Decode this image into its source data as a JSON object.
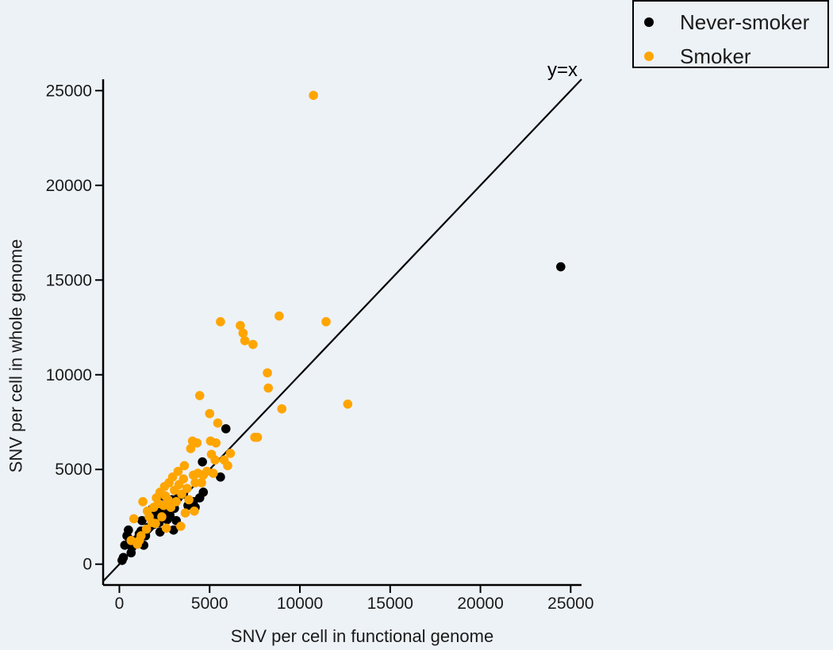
{
  "chart_data": {
    "type": "scatter",
    "xlabel": "SNV per cell in functional genome",
    "ylabel": "SNV per cell in whole genome",
    "xlim": [
      -900,
      25600
    ],
    "ylim": [
      -1100,
      25600
    ],
    "xticks": [
      0,
      5000,
      10000,
      15000,
      20000,
      25000
    ],
    "yticks": [
      0,
      5000,
      10000,
      15000,
      20000,
      25000
    ],
    "grid": false,
    "legend_position": "top-right",
    "reference_line": {
      "label": "y=x",
      "slope": 1,
      "intercept": 0
    },
    "series": [
      {
        "name": "Never-smoker",
        "color": "#000000",
        "points": [
          [
            150,
            200
          ],
          [
            220,
            350
          ],
          [
            300,
            1000
          ],
          [
            420,
            1500
          ],
          [
            500,
            1800
          ],
          [
            580,
            1300
          ],
          [
            650,
            600
          ],
          [
            700,
            900
          ],
          [
            800,
            1100
          ],
          [
            950,
            1300
          ],
          [
            1100,
            1600
          ],
          [
            1200,
            1750
          ],
          [
            1250,
            2300
          ],
          [
            1350,
            1000
          ],
          [
            1450,
            1500
          ],
          [
            1600,
            1950
          ],
          [
            1700,
            2600
          ],
          [
            1800,
            2900
          ],
          [
            1900,
            2100
          ],
          [
            2000,
            2400
          ],
          [
            2100,
            2650
          ],
          [
            2200,
            2200
          ],
          [
            2250,
            1700
          ],
          [
            2300,
            2800
          ],
          [
            2400,
            3600
          ],
          [
            2450,
            2500
          ],
          [
            2550,
            2700
          ],
          [
            2650,
            2350
          ],
          [
            2700,
            3100
          ],
          [
            2800,
            2600
          ],
          [
            2900,
            3400
          ],
          [
            3000,
            1800
          ],
          [
            3050,
            2950
          ],
          [
            3150,
            2300
          ],
          [
            3250,
            3500
          ],
          [
            3550,
            3700
          ],
          [
            3800,
            3100
          ],
          [
            4100,
            3300
          ],
          [
            4200,
            3000
          ],
          [
            4450,
            3500
          ],
          [
            4600,
            5400
          ],
          [
            4650,
            3800
          ],
          [
            5600,
            4600
          ],
          [
            5900,
            7150
          ],
          [
            24450,
            15700
          ]
        ]
      },
      {
        "name": "Smoker",
        "color": "#ffa500",
        "points": [
          [
            650,
            1250
          ],
          [
            800,
            2400
          ],
          [
            1000,
            1050
          ],
          [
            1100,
            1250
          ],
          [
            1200,
            1500
          ],
          [
            1300,
            3300
          ],
          [
            1500,
            1850
          ],
          [
            1550,
            2800
          ],
          [
            1650,
            2500
          ],
          [
            1800,
            2200
          ],
          [
            1900,
            3000
          ],
          [
            2000,
            2150
          ],
          [
            2050,
            3500
          ],
          [
            2150,
            3200
          ],
          [
            2250,
            3800
          ],
          [
            2350,
            2500
          ],
          [
            2450,
            3100
          ],
          [
            2500,
            4100
          ],
          [
            2550,
            3600
          ],
          [
            2600,
            1900
          ],
          [
            2700,
            3400
          ],
          [
            2750,
            4300
          ],
          [
            2850,
            3000
          ],
          [
            2950,
            4600
          ],
          [
            3050,
            3900
          ],
          [
            3150,
            3300
          ],
          [
            3250,
            4900
          ],
          [
            3300,
            4200
          ],
          [
            3400,
            2000
          ],
          [
            3450,
            3700
          ],
          [
            3550,
            4500
          ],
          [
            3600,
            5200
          ],
          [
            3650,
            2700
          ],
          [
            3750,
            4000
          ],
          [
            3850,
            3400
          ],
          [
            3950,
            6100
          ],
          [
            4050,
            6500
          ],
          [
            4100,
            4700
          ],
          [
            4150,
            2800
          ],
          [
            4200,
            4300
          ],
          [
            4300,
            6400
          ],
          [
            4350,
            4800
          ],
          [
            4450,
            8900
          ],
          [
            4550,
            4300
          ],
          [
            4650,
            4700
          ],
          [
            4850,
            4900
          ],
          [
            5000,
            7950
          ],
          [
            5050,
            6500
          ],
          [
            5100,
            5800
          ],
          [
            5200,
            4800
          ],
          [
            5300,
            5500
          ],
          [
            5350,
            6400
          ],
          [
            5450,
            7450
          ],
          [
            5600,
            12800
          ],
          [
            5800,
            5500
          ],
          [
            6000,
            5200
          ],
          [
            6150,
            5850
          ],
          [
            6700,
            12600
          ],
          [
            6850,
            12200
          ],
          [
            6950,
            11800
          ],
          [
            7400,
            11600
          ],
          [
            7500,
            6700
          ],
          [
            7650,
            6700
          ],
          [
            8200,
            10100
          ],
          [
            8250,
            9300
          ],
          [
            8850,
            13100
          ],
          [
            9000,
            8200
          ],
          [
            10750,
            24750
          ],
          [
            11450,
            12800
          ],
          [
            12650,
            8450
          ]
        ]
      }
    ]
  }
}
